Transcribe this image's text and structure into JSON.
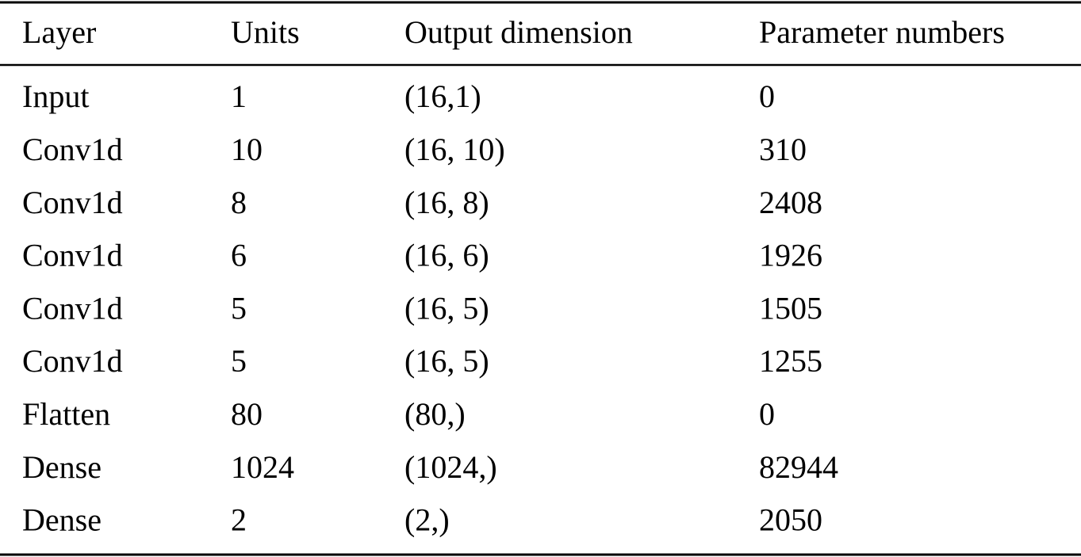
{
  "table": {
    "header": [
      "Layer",
      "Units",
      "Output dimension",
      "Parameter numbers"
    ],
    "rows": [
      [
        "Input",
        "1",
        "(16,1)",
        "0"
      ],
      [
        "Conv1d",
        "10",
        "(16, 10)",
        "310"
      ],
      [
        "Conv1d",
        "8",
        "(16, 8)",
        "2408"
      ],
      [
        "Conv1d",
        "6",
        "(16, 6)",
        "1926"
      ],
      [
        "Conv1d",
        "5",
        "(16, 5)",
        "1505"
      ],
      [
        "Conv1d",
        "5",
        "(16, 5)",
        "1255"
      ],
      [
        "Flatten",
        "80",
        "(80,)",
        "0"
      ],
      [
        "Dense",
        "1024",
        "(1024,)",
        "82944"
      ],
      [
        "Dense",
        "2",
        "(2,)",
        "2050"
      ]
    ]
  }
}
